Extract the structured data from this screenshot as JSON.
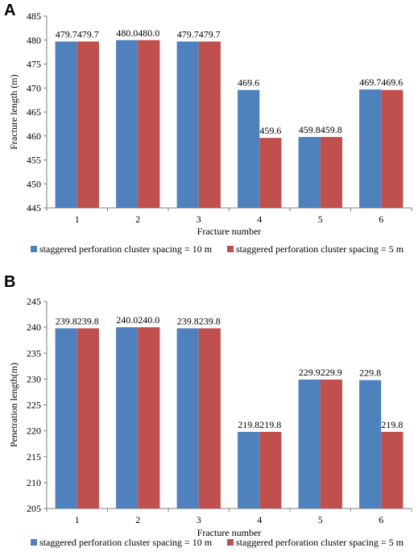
{
  "colors": {
    "series1": "#4f81bd",
    "series2": "#c0504d",
    "axis": "#7f7f7f"
  },
  "chart_data": [
    {
      "panel_label": "A",
      "type": "bar",
      "categories": [
        "1",
        "2",
        "3",
        "4",
        "5",
        "6"
      ],
      "series": [
        {
          "name": "staggered perforation cluster spacing = 10 m",
          "values": [
            479.7,
            480.0,
            479.7,
            469.6,
            459.8,
            469.7
          ],
          "labels": [
            "479.7",
            "480.0",
            "479.7",
            "469.6",
            "459.8",
            "469.7"
          ]
        },
        {
          "name": "staggered perforation cluster spacing = 5 m",
          "values": [
            479.7,
            480.0,
            479.7,
            459.6,
            459.8,
            469.6
          ],
          "labels": [
            "479.7",
            "480.0",
            "479.7",
            "459.6",
            "459.8",
            "469.6"
          ]
        }
      ],
      "xlabel": "Fracture number",
      "ylabel": "Fracture length (m)",
      "ylim": [
        445,
        485
      ],
      "yticks": [
        "445",
        "450",
        "455",
        "460",
        "465",
        "470",
        "475",
        "480",
        "485"
      ],
      "grid": false,
      "legend": "bottom"
    },
    {
      "panel_label": "B",
      "type": "bar",
      "categories": [
        "1",
        "2",
        "3",
        "4",
        "5",
        "6"
      ],
      "series": [
        {
          "name": "staggered perforation cluster spacing = 10 m",
          "values": [
            239.8,
            240.0,
            239.8,
            219.8,
            229.9,
            229.8
          ],
          "labels": [
            "239.8",
            "240.0",
            "239.8",
            "219.8",
            "229.9",
            "229.8"
          ]
        },
        {
          "name": "staggered perforation cluster spacing = 5 m",
          "values": [
            239.8,
            240.0,
            239.8,
            219.8,
            229.9,
            219.8
          ],
          "labels": [
            "239.8",
            "240.0",
            "239.8",
            "219.8",
            "229.9",
            "219.8"
          ]
        }
      ],
      "xlabel": "Fracture number",
      "ylabel": "Penetration length(m)",
      "ylim": [
        205,
        245
      ],
      "yticks": [
        "205",
        "210",
        "215",
        "220",
        "225",
        "230",
        "235",
        "240",
        "245"
      ],
      "grid": false,
      "legend": "bottom"
    }
  ]
}
